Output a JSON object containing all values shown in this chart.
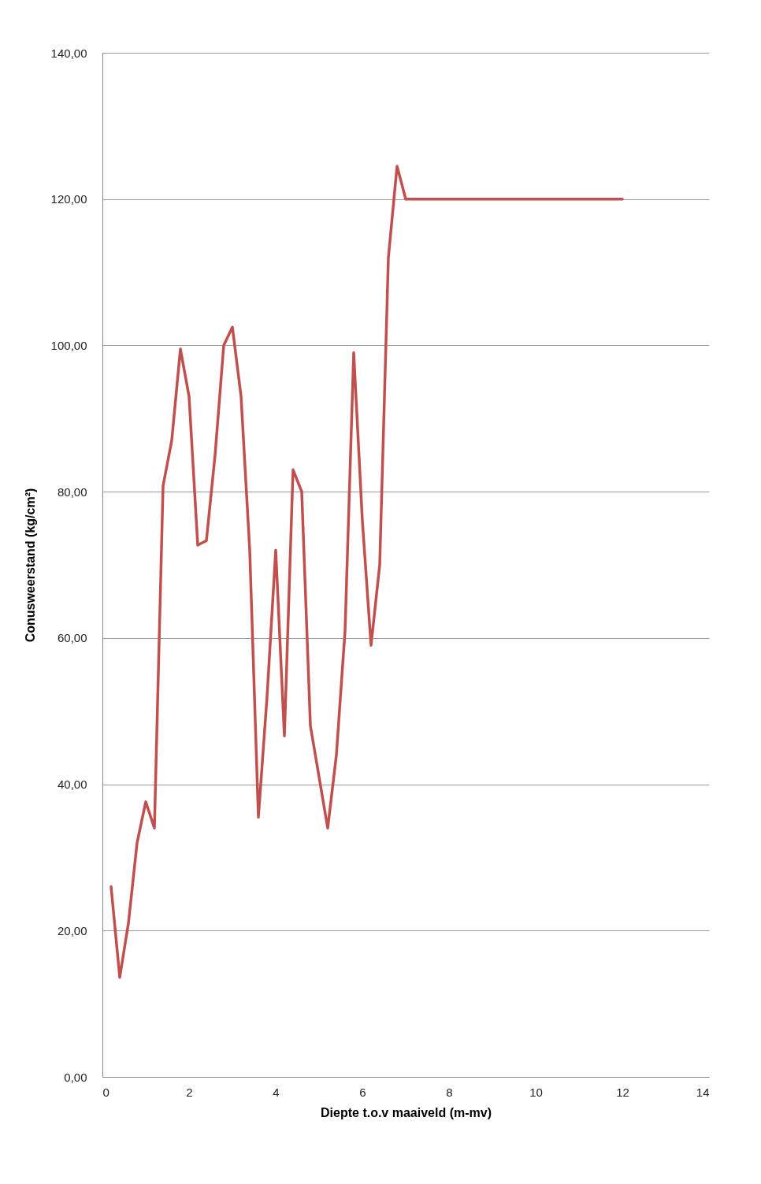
{
  "chart_data": {
    "type": "line",
    "xlabel": "Diepte t.o.v maaiveld (m-mv)",
    "ylabel": "Conusweerstand (kg/cm²)",
    "x": [
      0.2,
      0.4,
      0.6,
      0.8,
      1.0,
      1.2,
      1.4,
      1.6,
      1.8,
      2.0,
      2.2,
      2.4,
      2.6,
      2.8,
      3.0,
      3.2,
      3.4,
      3.6,
      3.8,
      4.0,
      4.2,
      4.4,
      4.6,
      4.8,
      5.0,
      5.2,
      5.4,
      5.6,
      5.8,
      6.0,
      6.2,
      6.4,
      6.6,
      6.8,
      7.0,
      12.0
    ],
    "series": [
      {
        "color": "#c0504d",
        "values": [
          26,
          13.6,
          21,
          32,
          37.6,
          34,
          80.8,
          87,
          99.5,
          93,
          72.7,
          73.3,
          85,
          100,
          102.5,
          93,
          72,
          35.5,
          52,
          72,
          46.6,
          83,
          80,
          48,
          41,
          34,
          44,
          61,
          99,
          76,
          59,
          70,
          112,
          124.5,
          120,
          120
        ]
      }
    ],
    "xlim": [
      0,
      14
    ],
    "xticks": [
      0,
      2,
      4,
      6,
      8,
      10,
      12,
      14
    ],
    "ylim": [
      0,
      140
    ],
    "yticks": [
      {
        "value": 0,
        "label": "0,00"
      },
      {
        "value": 20,
        "label": "20,00"
      },
      {
        "value": 40,
        "label": "40,00"
      },
      {
        "value": 60,
        "label": "60,00"
      },
      {
        "value": 80,
        "label": "80,00"
      },
      {
        "value": 100,
        "label": "100,00"
      },
      {
        "value": 120,
        "label": "120,00"
      },
      {
        "value": 140,
        "label": "140,00"
      }
    ],
    "grid": "y",
    "marker": "none",
    "line_style": "solid"
  }
}
